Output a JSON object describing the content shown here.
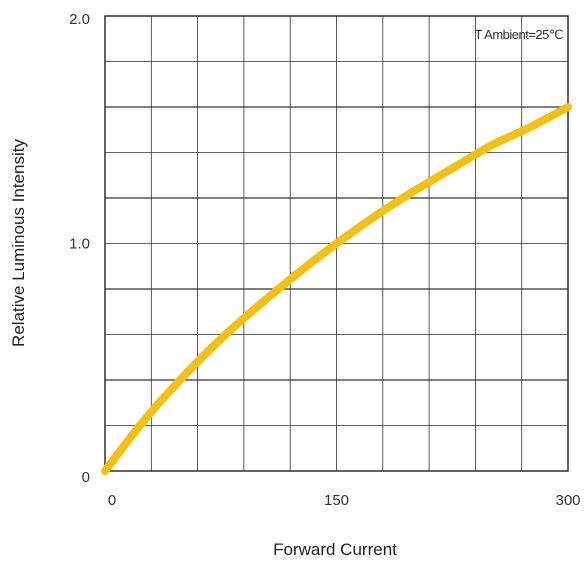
{
  "chart_data": {
    "type": "line",
    "title": "",
    "xlabel": "Forward Current",
    "ylabel": "Relative Luminous  Intensity",
    "annotation": "T Ambient=25℃",
    "xlim": [
      0,
      300
    ],
    "ylim": [
      0,
      2.0
    ],
    "x_ticks": [
      0,
      150,
      300
    ],
    "y_ticks": [
      0,
      1.0,
      2.0
    ],
    "x_tick_labels": [
      "0",
      "150",
      "300"
    ],
    "y_tick_labels": [
      "0",
      "1.0",
      "2.0"
    ],
    "grid": true,
    "series": [
      {
        "x": [
          0,
          25,
          50,
          75,
          100,
          125,
          150,
          175,
          200,
          225,
          250,
          275,
          300
        ],
        "y": [
          0,
          0.22,
          0.41,
          0.58,
          0.73,
          0.87,
          1.0,
          1.12,
          1.23,
          1.33,
          1.43,
          1.51,
          1.6
        ]
      }
    ],
    "colors": {
      "line": "#F5C010",
      "grid": "#333333",
      "text": "#333333"
    }
  }
}
